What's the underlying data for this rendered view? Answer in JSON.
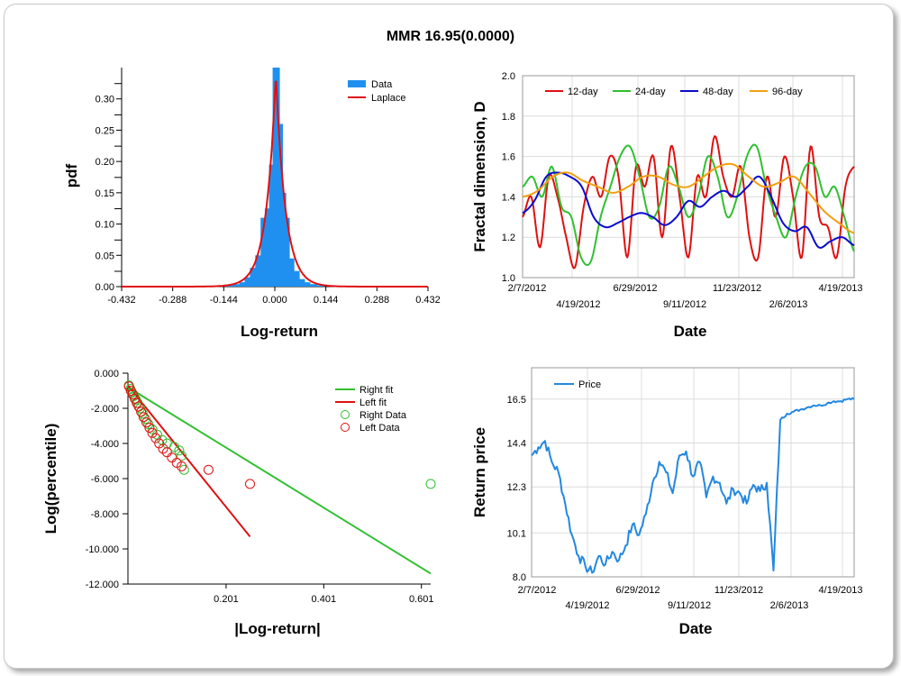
{
  "title": "MMR 16.95(0.0000)",
  "colors": {
    "red": "#e01010",
    "green": "#30c030",
    "blue": "#0a0ad0",
    "orange": "#f0a010",
    "bar": "#2090f0",
    "price": "#2288e0"
  },
  "chart_data": [
    {
      "type": "bar",
      "xlabel": "Log-return",
      "ylabel": "pdf",
      "xlim": [
        -0.432,
        0.432
      ],
      "ylim": [
        0,
        0.35
      ],
      "xticks": [
        "-0.432",
        "-0.288",
        "-0.144",
        "0.000",
        "0.144",
        "0.288",
        "0.432"
      ],
      "yticks": [
        "0.00",
        "0.05",
        "0.10",
        "0.15",
        "0.20",
        "0.25",
        "0.30"
      ],
      "legend": [
        "Data",
        "Laplace"
      ],
      "bins": [
        [
          -0.17,
          0.001
        ],
        [
          -0.15,
          0.002
        ],
        [
          -0.13,
          0.003
        ],
        [
          -0.11,
          0.004
        ],
        [
          -0.09,
          0.007
        ],
        [
          -0.075,
          0.015
        ],
        [
          -0.06,
          0.03
        ],
        [
          -0.045,
          0.05
        ],
        [
          -0.03,
          0.11
        ],
        [
          -0.018,
          0.125
        ],
        [
          -0.006,
          0.195
        ],
        [
          0.004,
          0.35
        ],
        [
          0.013,
          0.26
        ],
        [
          0.022,
          0.15
        ],
        [
          0.032,
          0.11
        ],
        [
          0.045,
          0.045
        ],
        [
          0.06,
          0.025
        ],
        [
          0.075,
          0.012
        ],
        [
          0.09,
          0.007
        ],
        [
          0.11,
          0.004
        ],
        [
          0.13,
          0.002
        ]
      ],
      "laplace": {
        "peak": 0.34,
        "scale": 0.027,
        "center": 0.003
      }
    },
    {
      "type": "line",
      "xlabel": "Date",
      "ylabel": "Fractal dimension, D",
      "ylim": [
        1.0,
        2.0
      ],
      "yticks": [
        "1.0",
        "1.2",
        "1.4",
        "1.6",
        "1.8",
        "2.0"
      ],
      "xticks_top": [
        "2/7/2012",
        "6/29/2012",
        "11/23/2012",
        "4/19/2013"
      ],
      "xticks_bottom": [
        "4/19/2012",
        "9/11/2012",
        "2/6/2013"
      ],
      "series": [
        {
          "name": "12-day",
          "values": [
            1.3,
            1.4,
            1.15,
            1.5,
            1.4,
            1.2,
            1.05,
            1.35,
            1.5,
            1.4,
            1.6,
            1.5,
            1.1,
            1.55,
            1.45,
            1.6,
            1.2,
            1.65,
            1.4,
            1.1,
            1.5,
            1.4,
            1.7,
            1.5,
            1.4,
            1.55,
            1.2,
            1.1,
            1.5,
            1.3,
            1.6,
            1.4,
            1.1,
            1.65,
            1.3,
            1.25,
            1.1,
            1.45,
            1.55
          ]
        },
        {
          "name": "24-day",
          "values": [
            1.45,
            1.5,
            1.4,
            1.55,
            1.35,
            1.3,
            1.1,
            1.08,
            1.3,
            1.45,
            1.6,
            1.65,
            1.5,
            1.3,
            1.35,
            1.55,
            1.45,
            1.3,
            1.4,
            1.6,
            1.5,
            1.3,
            1.4,
            1.6,
            1.65,
            1.45,
            1.3,
            1.2,
            1.4,
            1.55,
            1.55,
            1.4,
            1.45,
            1.3,
            1.13
          ]
        },
        {
          "name": "48-day",
          "values": [
            1.32,
            1.38,
            1.5,
            1.52,
            1.5,
            1.45,
            1.3,
            1.25,
            1.27,
            1.3,
            1.32,
            1.3,
            1.26,
            1.3,
            1.38,
            1.35,
            1.4,
            1.43,
            1.4,
            1.45,
            1.5,
            1.4,
            1.27,
            1.23,
            1.25,
            1.15,
            1.18,
            1.2,
            1.16
          ]
        },
        {
          "name": "96-day",
          "values": [
            1.4,
            1.43,
            1.5,
            1.52,
            1.48,
            1.45,
            1.42,
            1.45,
            1.5,
            1.5,
            1.46,
            1.45,
            1.5,
            1.55,
            1.56,
            1.5,
            1.45,
            1.47,
            1.5,
            1.42,
            1.33,
            1.27,
            1.22
          ]
        }
      ]
    },
    {
      "type": "scatter",
      "xlabel": "|Log-return|",
      "ylabel": "Log(percentile)",
      "xlim": [
        0,
        0.62
      ],
      "ylim": [
        -12,
        0
      ],
      "xticks": [
        "0.201",
        "0.401",
        "0.601"
      ],
      "yticks": [
        "0.000",
        "-2.000",
        "-4.000",
        "-6.000",
        "-8.000",
        "-10.000",
        "-12.000"
      ],
      "legend": [
        "Right fit",
        "Left fit",
        "Right Data",
        "Left Data"
      ],
      "right_fit": [
        [
          0.0,
          -0.8
        ],
        [
          0.62,
          -11.4
        ]
      ],
      "left_fit": [
        [
          0.0,
          -0.7
        ],
        [
          0.25,
          -9.3
        ]
      ],
      "right_data": [
        [
          0.002,
          -0.7
        ],
        [
          0.005,
          -0.9
        ],
        [
          0.008,
          -1.1
        ],
        [
          0.012,
          -1.3
        ],
        [
          0.016,
          -1.5
        ],
        [
          0.02,
          -1.7
        ],
        [
          0.025,
          -2.0
        ],
        [
          0.03,
          -2.3
        ],
        [
          0.036,
          -2.6
        ],
        [
          0.042,
          -2.9
        ],
        [
          0.05,
          -3.2
        ],
        [
          0.06,
          -3.5
        ],
        [
          0.07,
          -3.8
        ],
        [
          0.08,
          -4.0
        ],
        [
          0.095,
          -4.2
        ],
        [
          0.105,
          -4.4
        ],
        [
          0.11,
          -4.7
        ],
        [
          0.115,
          -5.5
        ],
        [
          0.62,
          -6.3
        ]
      ],
      "left_data": [
        [
          0.002,
          -0.75
        ],
        [
          0.006,
          -1.0
        ],
        [
          0.01,
          -1.2
        ],
        [
          0.014,
          -1.45
        ],
        [
          0.018,
          -1.7
        ],
        [
          0.022,
          -1.9
        ],
        [
          0.027,
          -2.2
        ],
        [
          0.032,
          -2.5
        ],
        [
          0.038,
          -2.8
        ],
        [
          0.044,
          -3.1
        ],
        [
          0.05,
          -3.4
        ],
        [
          0.057,
          -3.7
        ],
        [
          0.064,
          -4.0
        ],
        [
          0.072,
          -4.3
        ],
        [
          0.08,
          -4.5
        ],
        [
          0.09,
          -4.8
        ],
        [
          0.1,
          -5.1
        ],
        [
          0.11,
          -5.3
        ],
        [
          0.165,
          -5.5
        ],
        [
          0.25,
          -6.3
        ]
      ]
    },
    {
      "type": "line",
      "xlabel": "Date",
      "ylabel": "Return price",
      "ylim": [
        8.0,
        18.0
      ],
      "yticks": [
        "8.0",
        "10.1",
        "12.3",
        "14.4",
        "16.5"
      ],
      "xticks_top": [
        "2/7/2012",
        "6/29/2012",
        "11/23/2012",
        "4/19/2013"
      ],
      "xticks_bottom": [
        "4/19/2012",
        "9/11/2012",
        "2/6/2013"
      ],
      "series": [
        {
          "name": "Price",
          "values": [
            13.8,
            14.2,
            14.5,
            13.5,
            13.0,
            11.5,
            10.0,
            9.0,
            8.5,
            8.2,
            9.0,
            8.6,
            9.2,
            8.8,
            9.5,
            10.5,
            10.0,
            11.0,
            12.5,
            13.5,
            13.0,
            12.0,
            13.8,
            14.0,
            12.8,
            13.5,
            11.8,
            12.8,
            12.5,
            11.5,
            12.2,
            12.0,
            11.5,
            12.4,
            12.1,
            12.5,
            8.3,
            15.5,
            15.8,
            15.9,
            16.0,
            16.1,
            16.2,
            16.2,
            16.3,
            16.4,
            16.4,
            16.5,
            16.5
          ]
        }
      ]
    }
  ]
}
